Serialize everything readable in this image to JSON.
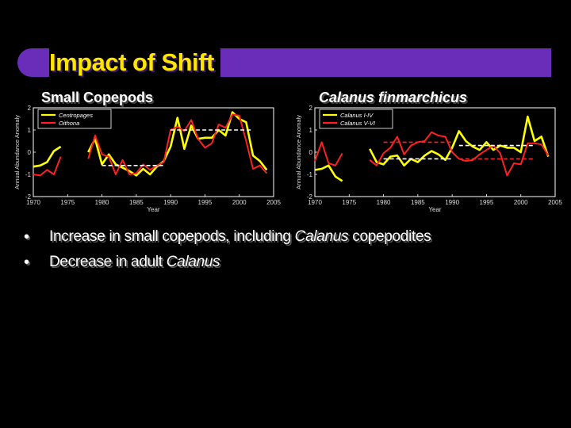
{
  "slide_title": "Impact of Shift",
  "bullets": [
    {
      "parts": [
        "Increase in small copepods, including ",
        "Calanus",
        " copepodites"
      ]
    },
    {
      "parts": [
        "Decrease in adult ",
        "Calanus",
        ""
      ]
    }
  ],
  "colors": {
    "accent": "#6a2dba",
    "title": "#ffe600",
    "series1": "#ffff00",
    "series2": "#ff2020",
    "baseline": "#ffffff"
  },
  "chart_data": [
    {
      "type": "line",
      "title": "Small Copepods",
      "xlabel": "Year",
      "ylabel": "Annual Abundance Anomaly",
      "xlim": [
        1970,
        2005
      ],
      "ylim": [
        -2,
        2
      ],
      "xticks": [
        "1970",
        "1975",
        "1980",
        "1985",
        "1990",
        "1995",
        "2000",
        "2005"
      ],
      "yticks": [
        "-2",
        "-1",
        "0",
        "1",
        "2"
      ],
      "legend_position": "top-left",
      "series": [
        {
          "name": "Centropages",
          "color": "#ffff00",
          "x": [
            1970,
            1971,
            1972,
            1973,
            1974,
            1978,
            1979,
            1980,
            1981,
            1982,
            1983,
            1984,
            1985,
            1986,
            1987,
            1988,
            1989,
            1990,
            1991,
            1992,
            1993,
            1994,
            1995,
            1996,
            1997,
            1998,
            1999,
            2000,
            2001,
            2002,
            2003,
            2004
          ],
          "y": [
            -0.65,
            -0.6,
            -0.45,
            0.05,
            0.25,
            0.0,
            0.6,
            -0.55,
            -0.1,
            -0.55,
            -0.7,
            -0.85,
            -1.05,
            -0.75,
            -1.0,
            -0.65,
            -0.4,
            0.25,
            1.55,
            0.15,
            1.2,
            0.6,
            0.65,
            0.65,
            1.0,
            0.75,
            1.8,
            1.5,
            1.35,
            -0.15,
            -0.4,
            -0.8
          ]
        },
        {
          "name": "Oithona",
          "color": "#ff2020",
          "x": [
            1970,
            1971,
            1972,
            1973,
            1974,
            1978,
            1979,
            1980,
            1981,
            1982,
            1983,
            1984,
            1985,
            1986,
            1987,
            1988,
            1989,
            1990,
            1991,
            1992,
            1993,
            1994,
            1995,
            1996,
            1997,
            1998,
            1999,
            2000,
            2001,
            2002,
            2003,
            2004
          ],
          "y": [
            -1.0,
            -1.05,
            -0.8,
            -1.0,
            -0.2,
            -0.3,
            0.75,
            -0.1,
            -0.2,
            -1.0,
            -0.35,
            -1.0,
            -0.95,
            -0.55,
            -0.8,
            -0.6,
            -0.45,
            1.0,
            1.15,
            0.95,
            1.45,
            0.6,
            0.2,
            0.4,
            1.25,
            1.1,
            1.7,
            1.65,
            0.5,
            -0.75,
            -0.6,
            -0.95
          ]
        }
      ],
      "reference_lines": [
        {
          "x": [
            1980,
            1989
          ],
          "y": -0.6,
          "color": "#ffffff",
          "style": "dashed"
        },
        {
          "x": [
            1990,
            2002
          ],
          "y": 1.0,
          "color": "#ffffff",
          "style": "dashed"
        }
      ]
    },
    {
      "type": "line",
      "title": "Calanus finmarchicus",
      "xlabel": "Year",
      "ylabel": "Annual Abundance Anomaly",
      "xlim": [
        1970,
        2005
      ],
      "ylim": [
        -2,
        2
      ],
      "xticks": [
        "1970",
        "1975",
        "1980",
        "1985",
        "1990",
        "1995",
        "2000",
        "2005"
      ],
      "yticks": [
        "-2",
        "-1",
        "0",
        "1",
        "2"
      ],
      "legend_position": "top-left",
      "series": [
        {
          "name": "Calanus I-IV",
          "color": "#ffff00",
          "x": [
            1970,
            1971,
            1972,
            1973,
            1974,
            1978,
            1979,
            1980,
            1981,
            1982,
            1983,
            1984,
            1985,
            1986,
            1987,
            1988,
            1989,
            1990,
            1991,
            1992,
            1993,
            1994,
            1995,
            1996,
            1997,
            1998,
            1999,
            2000,
            2001,
            2002,
            2003,
            2004
          ],
          "y": [
            -0.8,
            -0.75,
            -0.6,
            -1.1,
            -1.3,
            0.15,
            -0.45,
            -0.55,
            -0.2,
            -0.15,
            -0.6,
            -0.3,
            -0.45,
            -0.15,
            0.05,
            -0.1,
            -0.35,
            0.2,
            0.95,
            0.5,
            0.25,
            0.1,
            0.45,
            0.1,
            0.3,
            0.2,
            0.2,
            0.0,
            1.6,
            0.5,
            0.7,
            -0.2
          ]
        },
        {
          "name": "Calanus V-VI",
          "color": "#ff2020",
          "x": [
            1970,
            1971,
            1972,
            1973,
            1974,
            1978,
            1979,
            1980,
            1981,
            1982,
            1983,
            1984,
            1985,
            1986,
            1987,
            1988,
            1989,
            1990,
            1991,
            1992,
            1993,
            1994,
            1995,
            1996,
            1997,
            1998,
            1999,
            2000,
            2001,
            2002,
            2003,
            2004
          ],
          "y": [
            -0.4,
            0.45,
            -0.5,
            -0.6,
            -0.05,
            -0.35,
            -0.6,
            -0.05,
            0.2,
            0.7,
            -0.1,
            0.3,
            0.45,
            0.5,
            0.9,
            0.75,
            0.7,
            0.0,
            -0.3,
            -0.4,
            -0.35,
            -0.1,
            0.1,
            0.3,
            -0.05,
            -1.05,
            -0.5,
            -0.55,
            0.4,
            0.4,
            0.35,
            -0.15
          ]
        }
      ],
      "reference_lines": [
        {
          "x": [
            1980,
            1990
          ],
          "y": -0.3,
          "color": "#ffffff",
          "style": "dashed"
        },
        {
          "x": [
            1991,
            2002
          ],
          "y": 0.3,
          "color": "#ffffff",
          "style": "dashed"
        },
        {
          "x": [
            1980,
            1990
          ],
          "y": 0.45,
          "color": "#ff2020",
          "style": "dashed"
        },
        {
          "x": [
            1991,
            2002
          ],
          "y": -0.3,
          "color": "#ff2020",
          "style": "dashed"
        }
      ]
    }
  ]
}
